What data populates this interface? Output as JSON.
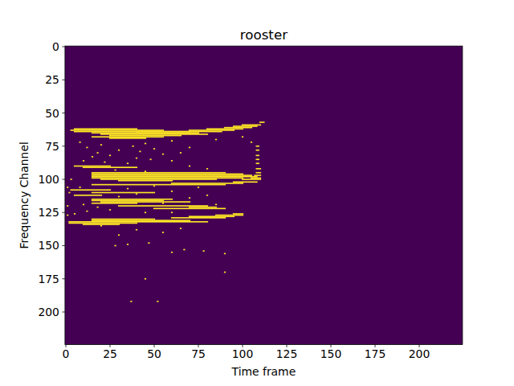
{
  "chart_data": {
    "type": "heatmap",
    "title": "rooster",
    "x_label": "Time frame",
    "y_label": "Frequency Channel",
    "xlim": [
      -0.5,
      224.5
    ],
    "ylim": [
      224.5,
      -0.5
    ],
    "xticks": [
      0,
      25,
      50,
      75,
      100,
      125,
      150,
      175,
      200
    ],
    "yticks": [
      0,
      25,
      50,
      75,
      100,
      125,
      150,
      175,
      200
    ],
    "color": "#fde725",
    "runs": [
      [
        62,
        5,
        40
      ],
      [
        63,
        3,
        55
      ],
      [
        64,
        5,
        70
      ],
      [
        65,
        15,
        75
      ],
      [
        66,
        20,
        80
      ],
      [
        67,
        25,
        65
      ],
      [
        68,
        15,
        55
      ],
      [
        69,
        25,
        45
      ],
      [
        63,
        70,
        95
      ],
      [
        64,
        40,
        88
      ],
      [
        62,
        80,
        100
      ],
      [
        61,
        90,
        105
      ],
      [
        60,
        95,
        108
      ],
      [
        59,
        100,
        110
      ],
      [
        57,
        110,
        112
      ],
      [
        90,
        5,
        25
      ],
      [
        91,
        10,
        40
      ],
      [
        95,
        15,
        90
      ],
      [
        96,
        15,
        100
      ],
      [
        97,
        15,
        105
      ],
      [
        98,
        15,
        108
      ],
      [
        99,
        15,
        100
      ],
      [
        100,
        20,
        85
      ],
      [
        101,
        30,
        60
      ],
      [
        104,
        15,
        90
      ],
      [
        103,
        60,
        100
      ],
      [
        102,
        95,
        108
      ],
      [
        100,
        100,
        110
      ],
      [
        99,
        105,
        110
      ],
      [
        97,
        107,
        110
      ],
      [
        95,
        108,
        110
      ],
      [
        92,
        108,
        110
      ],
      [
        88,
        108,
        109
      ],
      [
        85,
        108,
        109
      ],
      [
        82,
        108,
        109
      ],
      [
        78,
        108,
        109
      ],
      [
        75,
        108,
        109
      ],
      [
        108,
        3,
        25
      ],
      [
        110,
        15,
        50
      ],
      [
        112,
        5,
        20
      ],
      [
        115,
        15,
        60
      ],
      [
        116,
        15,
        55
      ],
      [
        117,
        20,
        70
      ],
      [
        118,
        15,
        40
      ],
      [
        120,
        30,
        80
      ],
      [
        122,
        50,
        90
      ],
      [
        121,
        70,
        85
      ],
      [
        130,
        15,
        50
      ],
      [
        131,
        15,
        70
      ],
      [
        132,
        2,
        80
      ],
      [
        133,
        2,
        40
      ],
      [
        134,
        10,
        30
      ],
      [
        129,
        60,
        90
      ],
      [
        128,
        70,
        95
      ],
      [
        127,
        85,
        100
      ],
      [
        126,
        95,
        100
      ],
      [
        72,
        8,
        8
      ],
      [
        74,
        20,
        20
      ],
      [
        76,
        12,
        12
      ],
      [
        78,
        30,
        30
      ],
      [
        80,
        18,
        18
      ],
      [
        82,
        25,
        25
      ],
      [
        84,
        40,
        40
      ],
      [
        86,
        10,
        10
      ],
      [
        88,
        35,
        35
      ],
      [
        73,
        45,
        45
      ],
      [
        77,
        50,
        50
      ],
      [
        81,
        55,
        55
      ],
      [
        85,
        48,
        48
      ],
      [
        75,
        38,
        38
      ],
      [
        79,
        42,
        42
      ],
      [
        83,
        15,
        15
      ],
      [
        87,
        22,
        22
      ],
      [
        71,
        60,
        60
      ],
      [
        76,
        70,
        70
      ],
      [
        80,
        65,
        65
      ],
      [
        93,
        28,
        28
      ],
      [
        94,
        45,
        45
      ],
      [
        106,
        8,
        8
      ],
      [
        107,
        35,
        35
      ],
      [
        105,
        50,
        50
      ],
      [
        109,
        60,
        60
      ],
      [
        111,
        40,
        40
      ],
      [
        113,
        30,
        30
      ],
      [
        114,
        70,
        70
      ],
      [
        119,
        10,
        10
      ],
      [
        123,
        25,
        25
      ],
      [
        125,
        45,
        45
      ],
      [
        124,
        12,
        12
      ],
      [
        126,
        5,
        5
      ],
      [
        118,
        55,
        55
      ],
      [
        121,
        18,
        18
      ],
      [
        106,
        75,
        75
      ],
      [
        112,
        80,
        80
      ],
      [
        119,
        85,
        85
      ],
      [
        125,
        60,
        60
      ],
      [
        135,
        20,
        20
      ],
      [
        138,
        40,
        40
      ],
      [
        140,
        55,
        55
      ],
      [
        142,
        30,
        30
      ],
      [
        137,
        65,
        65
      ],
      [
        150,
        28,
        28
      ],
      [
        149,
        35,
        35
      ],
      [
        148,
        47,
        47
      ],
      [
        155,
        60,
        60
      ],
      [
        154,
        78,
        78
      ],
      [
        156,
        90,
        90
      ],
      [
        153,
        67,
        67
      ],
      [
        170,
        90,
        90
      ],
      [
        175,
        45,
        45
      ],
      [
        192,
        37,
        37
      ],
      [
        192,
        52,
        52
      ],
      [
        70,
        85,
        85
      ],
      [
        72,
        105,
        105
      ],
      [
        68,
        100,
        100
      ],
      [
        86,
        60,
        60
      ],
      [
        90,
        70,
        70
      ],
      [
        92,
        80,
        80
      ],
      [
        127,
        1,
        1
      ],
      [
        120,
        1,
        1
      ],
      [
        110,
        2,
        2
      ],
      [
        100,
        3,
        3
      ],
      [
        106,
        1,
        1
      ]
    ]
  }
}
